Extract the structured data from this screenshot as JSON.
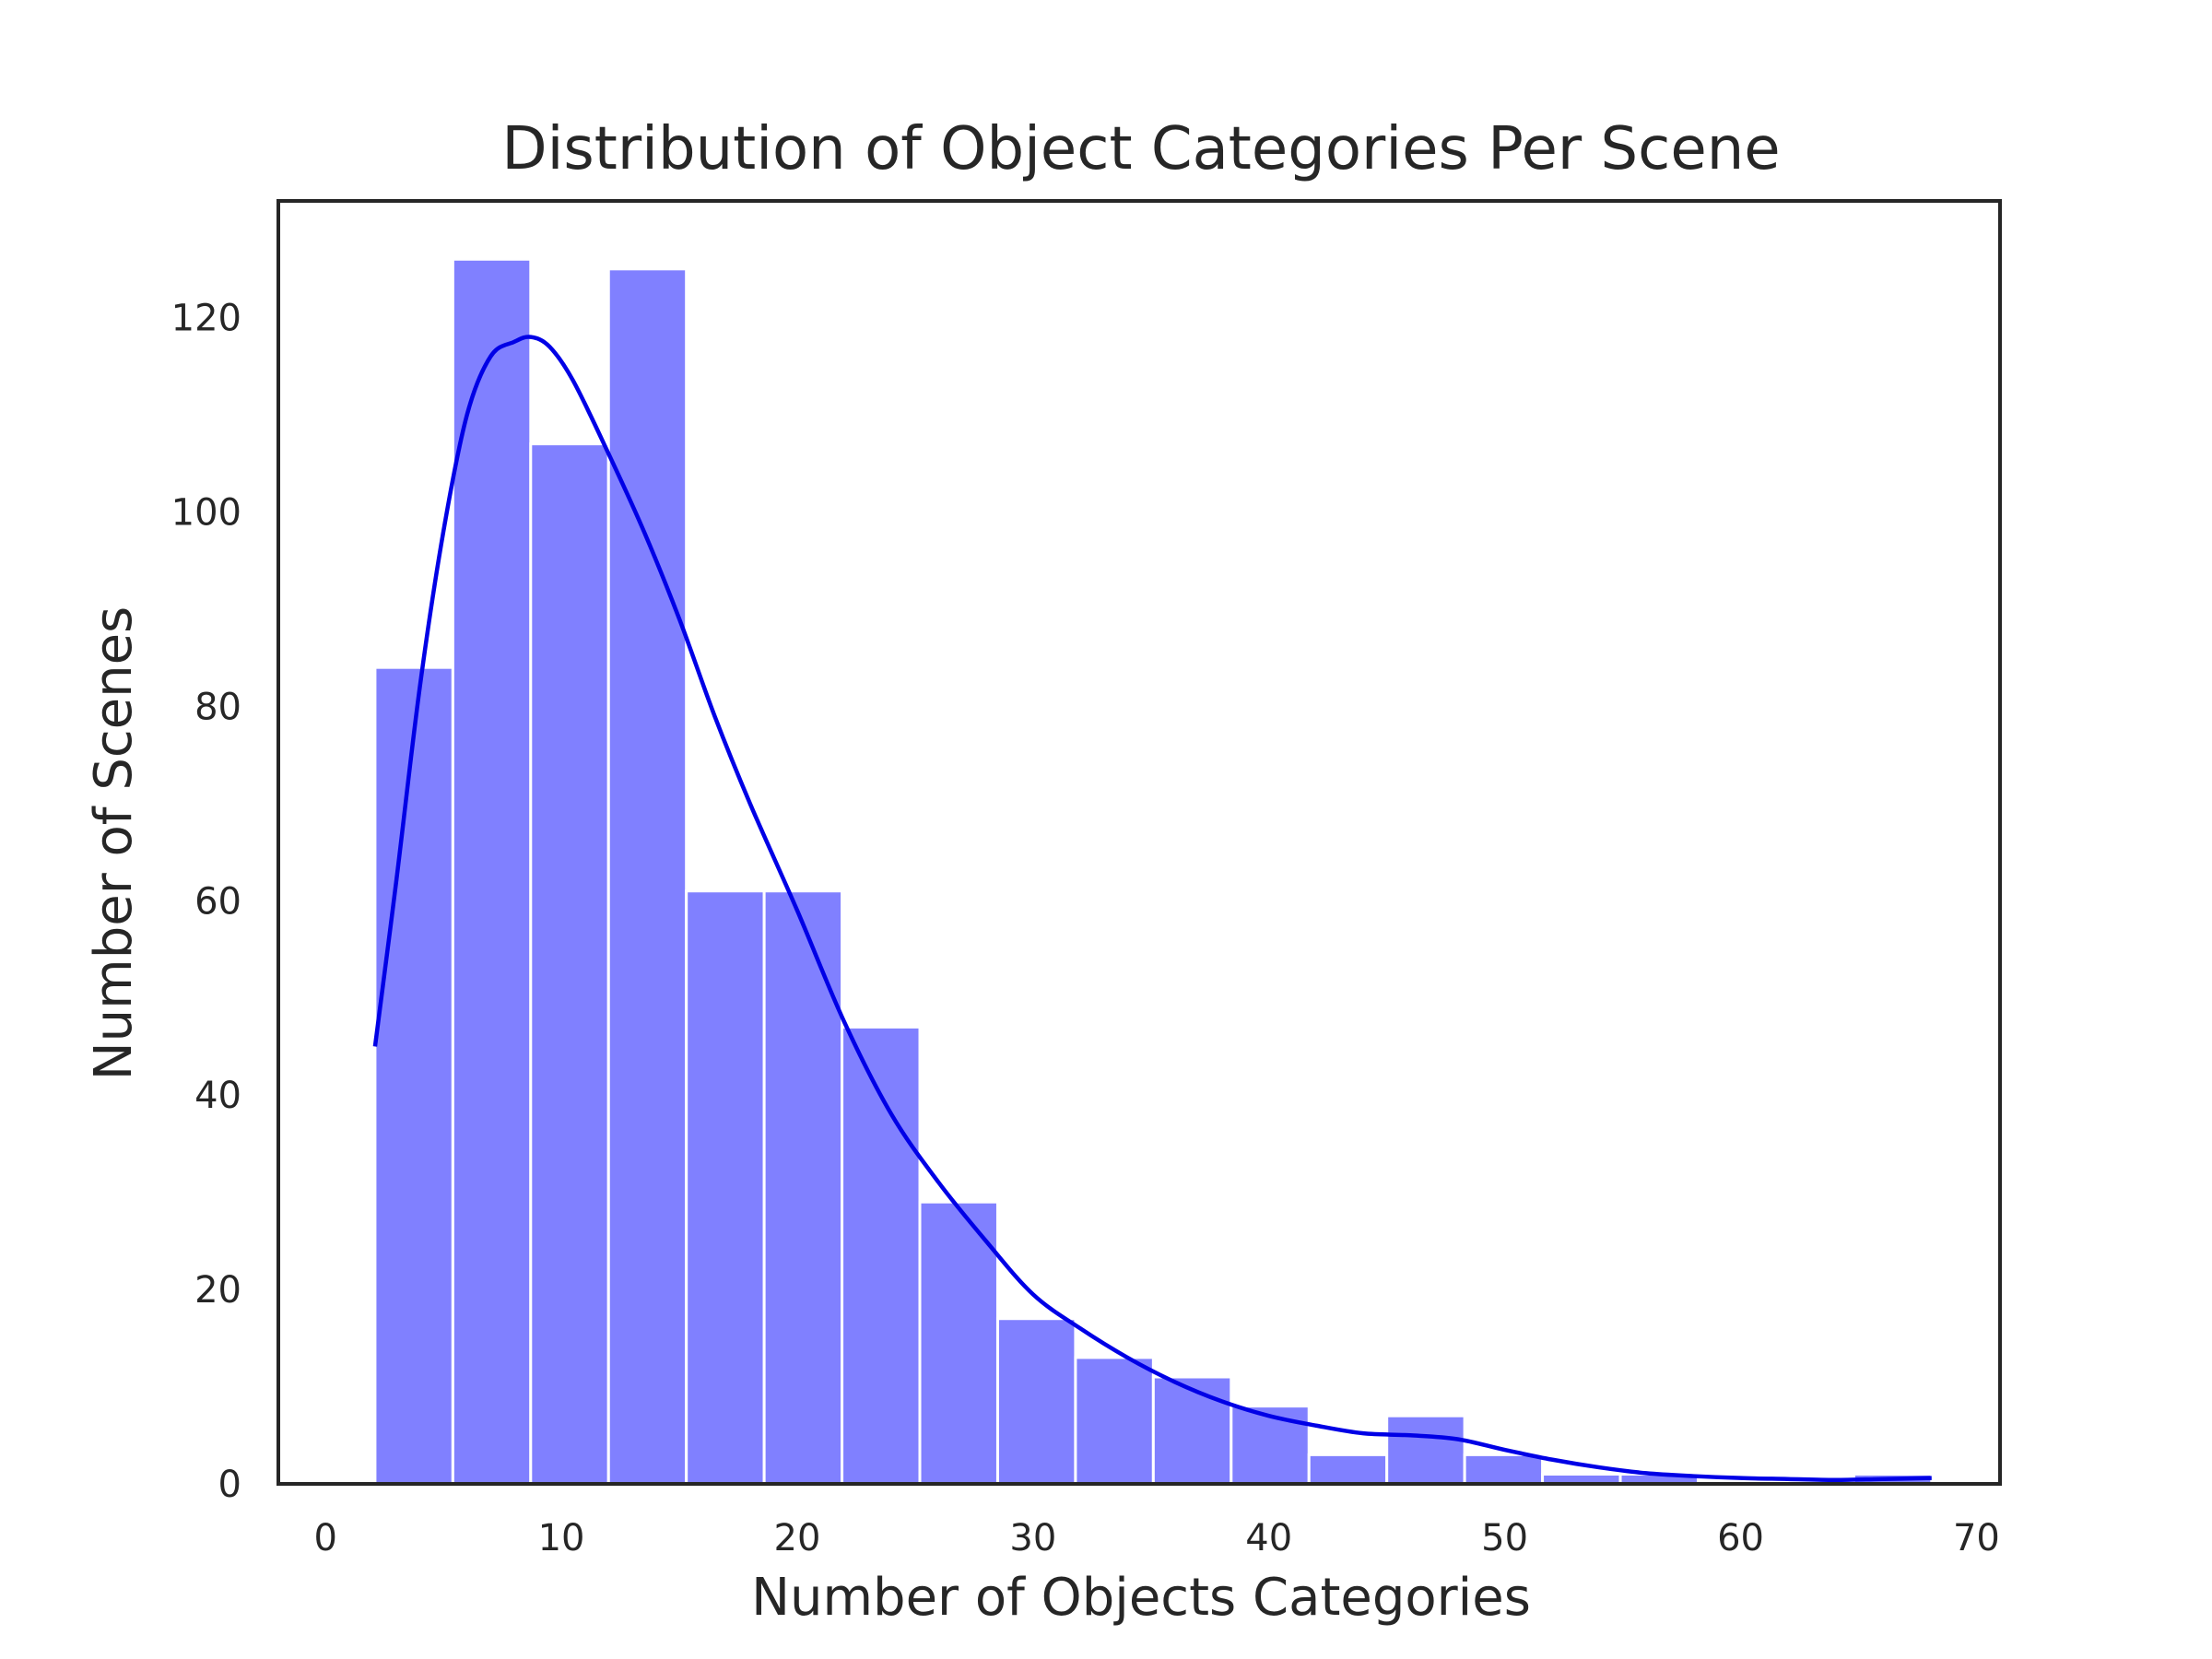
{
  "chart_data": {
    "type": "bar",
    "subtype": "histogram_with_kde",
    "title": "Distribution of Object Categories Per Scene",
    "xlabel": "Number of Objects Categories",
    "ylabel": "Number of Scenes",
    "xlim": [
      -2,
      71
    ],
    "ylim": [
      0,
      132
    ],
    "xticks": [
      0,
      10,
      20,
      30,
      40,
      50,
      60,
      70
    ],
    "yticks": [
      0,
      20,
      40,
      60,
      80,
      100,
      120
    ],
    "grid": false,
    "bar_color": "#8080ff",
    "bar_edge_color": "#ffffff",
    "kde_color": "#0000e6",
    "frame_color": "#262626",
    "bins": [
      {
        "x0": 2.1,
        "x1": 5.4,
        "count": 84
      },
      {
        "x0": 5.4,
        "x1": 8.7,
        "count": 126
      },
      {
        "x0": 8.7,
        "x1": 12.0,
        "count": 107
      },
      {
        "x0": 12.0,
        "x1": 15.3,
        "count": 125
      },
      {
        "x0": 15.3,
        "x1": 18.6,
        "count": 61
      },
      {
        "x0": 18.6,
        "x1": 21.9,
        "count": 61
      },
      {
        "x0": 21.9,
        "x1": 25.2,
        "count": 47
      },
      {
        "x0": 25.2,
        "x1": 28.5,
        "count": 29
      },
      {
        "x0": 28.5,
        "x1": 31.8,
        "count": 17
      },
      {
        "x0": 31.8,
        "x1": 35.1,
        "count": 13
      },
      {
        "x0": 35.1,
        "x1": 38.4,
        "count": 11
      },
      {
        "x0": 38.4,
        "x1": 41.7,
        "count": 8
      },
      {
        "x0": 41.7,
        "x1": 45.0,
        "count": 3
      },
      {
        "x0": 45.0,
        "x1": 48.3,
        "count": 7
      },
      {
        "x0": 48.3,
        "x1": 51.6,
        "count": 3
      },
      {
        "x0": 51.6,
        "x1": 54.9,
        "count": 1
      },
      {
        "x0": 54.9,
        "x1": 58.2,
        "count": 1
      },
      {
        "x0": 58.2,
        "x1": 61.5,
        "count": 0
      },
      {
        "x0": 61.5,
        "x1": 64.8,
        "count": 0
      },
      {
        "x0": 64.8,
        "x1": 68.1,
        "count": 1
      }
    ],
    "kde": {
      "x": [
        2.1,
        3,
        4,
        5,
        6,
        7,
        8,
        8.7,
        9.5,
        10.5,
        12,
        13.5,
        15,
        16.5,
        18,
        20,
        22,
        24,
        26,
        28,
        30,
        32,
        34,
        36,
        38,
        40,
        42,
        44,
        46,
        48,
        50,
        52,
        54,
        56,
        58,
        60,
        62,
        64,
        66,
        68.1
      ],
      "y": [
        45,
        62,
        82,
        98,
        110,
        116,
        117.5,
        118,
        117,
        113.5,
        106,
        98,
        89,
        79,
        70,
        59,
        47.5,
        38,
        31,
        25,
        19.5,
        16,
        13,
        10.5,
        8.5,
        7,
        6,
        5.2,
        5,
        4.6,
        3.5,
        2.5,
        1.7,
        1.1,
        0.8,
        0.6,
        0.5,
        0.4,
        0.5,
        0.6
      ]
    }
  }
}
